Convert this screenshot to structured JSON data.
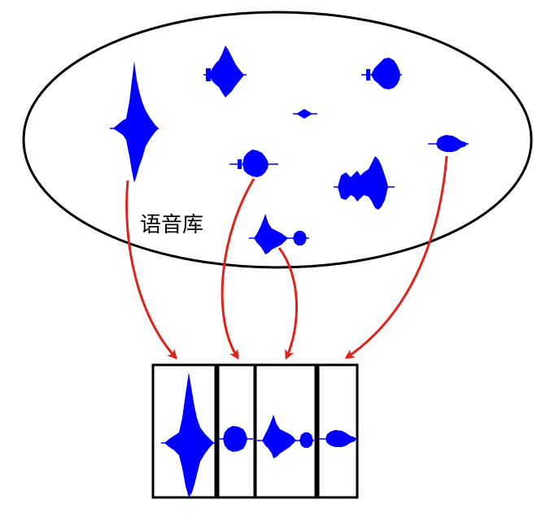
{
  "database_label": "语音库",
  "colors": {
    "waveform": "#0000ff",
    "arrow": "#e0231a",
    "outline": "#000000"
  },
  "units_in_database": [
    {
      "id": "u1",
      "shape": "tall-spike"
    },
    {
      "id": "u2",
      "shape": "mid-burst"
    },
    {
      "id": "u3",
      "shape": "tiny-blip"
    },
    {
      "id": "u4",
      "shape": "rounded-burst"
    },
    {
      "id": "u5",
      "shape": "round-blob"
    },
    {
      "id": "u6",
      "shape": "wide-double-burst"
    },
    {
      "id": "u7",
      "shape": "flat-blob"
    },
    {
      "id": "u8",
      "shape": "burst-with-tail"
    }
  ],
  "selected_sequence": [
    "u1",
    "u5",
    "u8",
    "u7"
  ]
}
